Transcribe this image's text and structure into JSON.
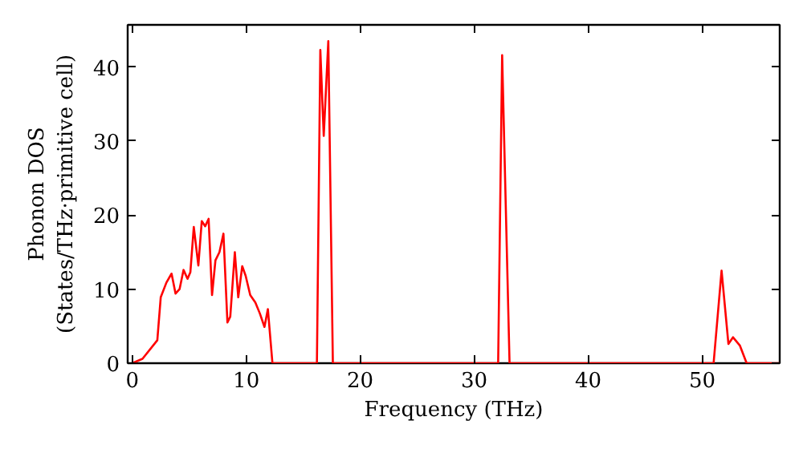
{
  "chart_data": {
    "type": "line",
    "xlabel": "Frequency (THz)",
    "ylabel": "Phonon DOS\n(States/THz·primitive cell)",
    "x": [
      0,
      0.9,
      2.2,
      2.5,
      3.0,
      3.45,
      3.8,
      4.15,
      4.5,
      4.85,
      5.1,
      5.4,
      5.8,
      6.1,
      6.4,
      6.7,
      7.0,
      7.3,
      7.65,
      8.0,
      8.35,
      8.6,
      9.0,
      9.3,
      9.65,
      9.95,
      10.35,
      10.8,
      11.2,
      11.6,
      11.9,
      12.3,
      16.2,
      16.5,
      16.8,
      17.2,
      17.6,
      32.1,
      32.45,
      33.1,
      51.0,
      51.7,
      52.3,
      52.7,
      53.3,
      53.9,
      56.8
    ],
    "series": [
      {
        "color": "#ff0000",
        "values": [
          0,
          0.6,
          3.1,
          8.9,
          10.9,
          12.1,
          9.4,
          10,
          12.6,
          11.4,
          12.3,
          18.4,
          13.2,
          19.2,
          18.5,
          19.5,
          9.2,
          13.9,
          15.0,
          17.5,
          5.5,
          6.3,
          15.0,
          8.9,
          13.1,
          11.8,
          9.2,
          8.2,
          6.7,
          4.9,
          7.3,
          0,
          0,
          42.3,
          30.7,
          43.5,
          0,
          0,
          41.6,
          0,
          0,
          12.5,
          2.6,
          3.5,
          2.4,
          0,
          0
        ]
      }
    ],
    "xlim": [
      -0.4,
      56.8
    ],
    "ylim": [
      0,
      45.7
    ],
    "xticks": [
      0,
      10,
      20,
      30,
      40,
      50
    ],
    "yticks": [
      0,
      10,
      20,
      30,
      40
    ],
    "grid": false,
    "marker": "none",
    "line_style": "solid"
  }
}
